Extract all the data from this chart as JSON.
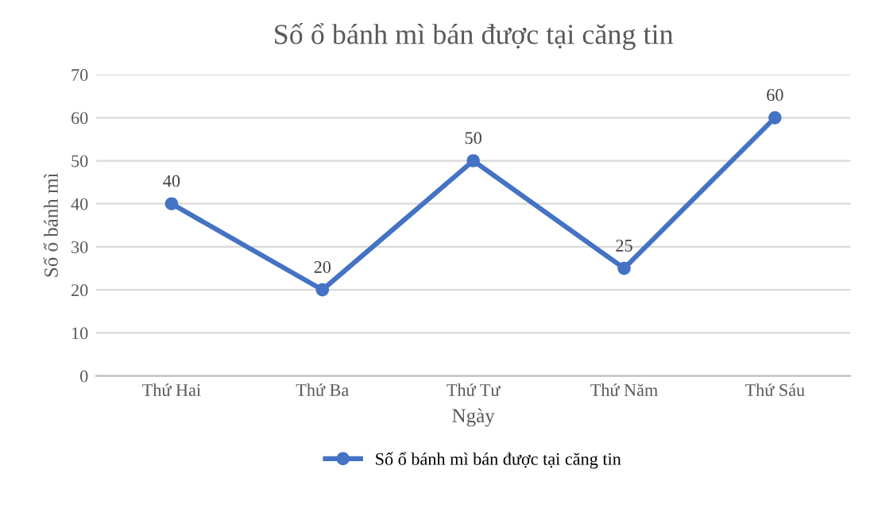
{
  "chart_data": {
    "type": "line",
    "title": "Số ổ bánh mì bán được tại căng tin",
    "xlabel": "Ngày",
    "ylabel": "Số ổ bánh mì",
    "categories": [
      "Thứ Hai",
      "Thứ Ba",
      "Thứ Tư",
      "Thứ Năm",
      "Thứ Sáu"
    ],
    "series": [
      {
        "name": "Số ổ bánh mì bán được tại căng tin",
        "color": "#4472c4",
        "values": [
          40,
          20,
          50,
          25,
          60
        ]
      }
    ],
    "ylim": [
      0,
      70
    ],
    "yticks": [
      0,
      10,
      20,
      30,
      40,
      50,
      60,
      70
    ],
    "grid": "y",
    "legend": "bottom",
    "marker": "circle",
    "line_style": "solid",
    "data_labels": true
  }
}
